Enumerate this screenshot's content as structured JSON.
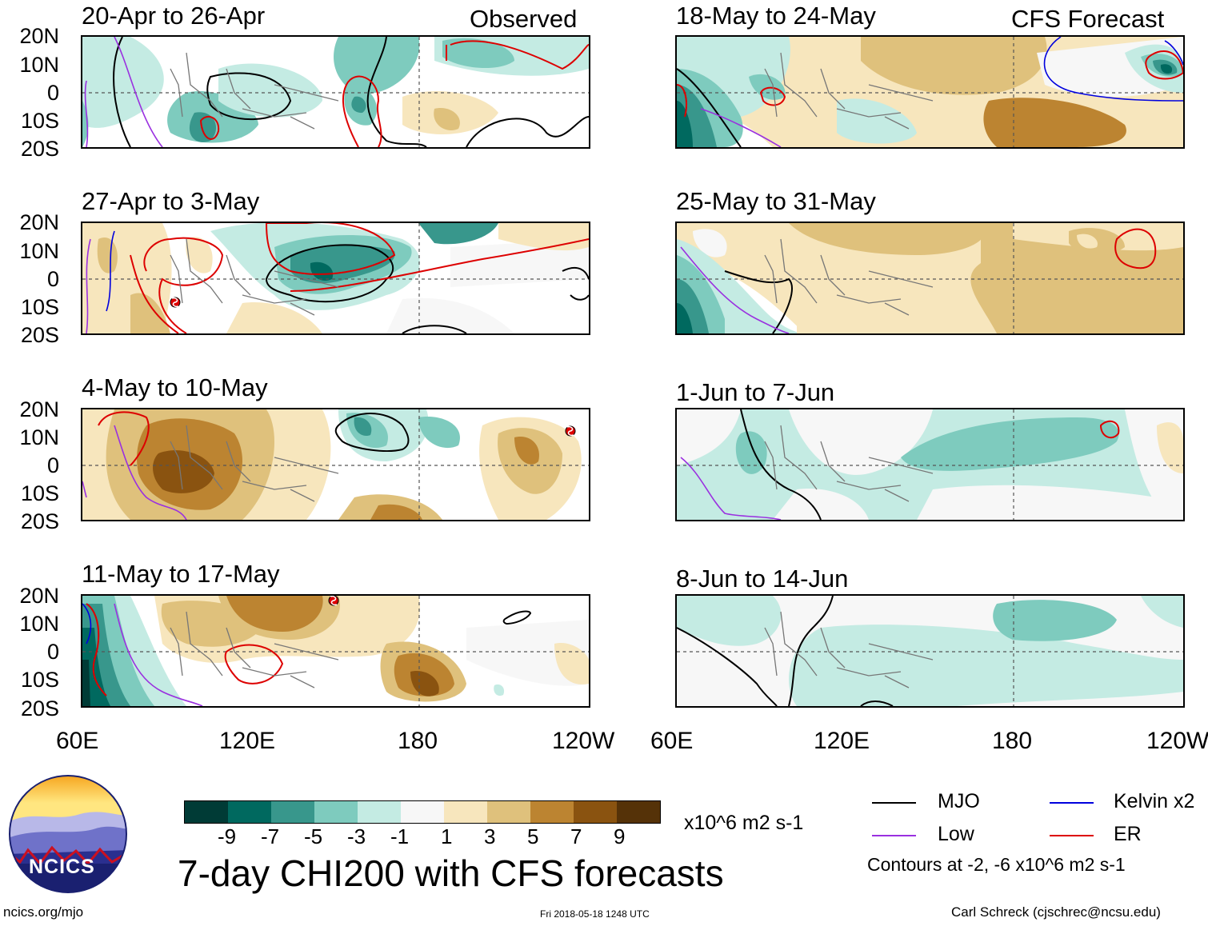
{
  "figure": {
    "title": "7-day CHI200 with CFS forecasts",
    "observed_label": "Observed",
    "forecast_label": "CFS Forecast",
    "units": "x10^6 m2 s-1",
    "contour_note": "Contours at -2, -6 x10^6 m2 s-1"
  },
  "panels_left": [
    {
      "title": "20-Apr to 26-Apr"
    },
    {
      "title": "27-Apr to 3-May"
    },
    {
      "title": "4-May to 10-May"
    },
    {
      "title": "11-May to 17-May"
    }
  ],
  "panels_right": [
    {
      "title": "18-May to 24-May"
    },
    {
      "title": "25-May to 31-May"
    },
    {
      "title": "1-Jun to 7-Jun"
    },
    {
      "title": "8-Jun to 14-Jun"
    }
  ],
  "axes": {
    "lat_labels": [
      "20N",
      "10N",
      "0",
      "10S",
      "20S"
    ],
    "lon_labels": [
      "60E",
      "120E",
      "180",
      "120W"
    ]
  },
  "colorbar": {
    "labels": [
      "-9",
      "-7",
      "-5",
      "-3",
      "-1",
      "1",
      "3",
      "5",
      "7",
      "9"
    ],
    "colors": [
      "#003b36",
      "#00695f",
      "#38978c",
      "#7ecbbe",
      "#c4ebe3",
      "#f7f7f7",
      "#f7e6bd",
      "#dfc17c",
      "#bc8431",
      "#8a5310",
      "#553208"
    ]
  },
  "legend": {
    "mjo": {
      "label": "MJO",
      "color": "#000000"
    },
    "kelvin": {
      "label": "Kelvin x2",
      "color": "#0000dd"
    },
    "low": {
      "label": "Low",
      "color": "#9a30e0"
    },
    "er": {
      "label": "ER",
      "color": "#dd0000"
    }
  },
  "footer": {
    "site": "ncics.org/mjo",
    "timestamp": "Fri 2018-05-18 1248 UTC",
    "credit": "Carl Schreck (cjschrec@ncsu.edu)",
    "logo_text": "NCICS"
  }
}
